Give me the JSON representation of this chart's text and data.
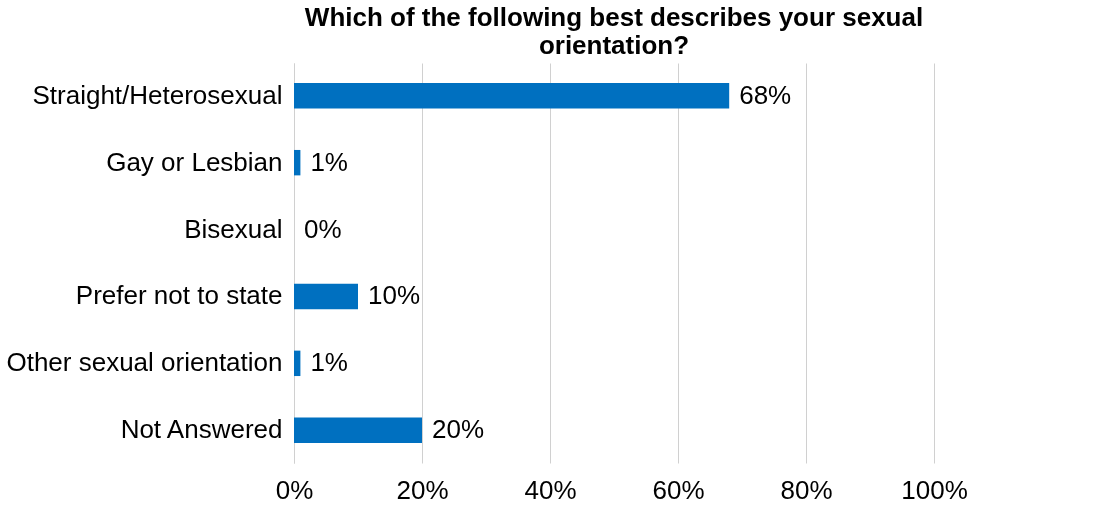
{
  "chart_data": {
    "type": "bar",
    "orientation": "horizontal",
    "title": "Which of the following best describes your sexual orientation?",
    "categories": [
      "Straight/Heterosexual",
      "Gay or Lesbian",
      "Bisexual",
      "Prefer not to state",
      "Other sexual orientation",
      "Not Answered"
    ],
    "values": [
      68,
      1,
      0,
      10,
      1,
      20
    ],
    "value_labels": [
      "68%",
      "1%",
      "0%",
      "10%",
      "1%",
      "20%"
    ],
    "color": "#0070c0",
    "xlim": [
      0,
      100
    ],
    "xticks": [
      {
        "value": 0,
        "label": "0%"
      },
      {
        "value": 20,
        "label": "20%"
      },
      {
        "value": 40,
        "label": "40%"
      },
      {
        "value": 60,
        "label": "60%"
      },
      {
        "value": 80,
        "label": "80%"
      },
      {
        "value": 100,
        "label": "100%"
      }
    ],
    "grid": "x"
  }
}
